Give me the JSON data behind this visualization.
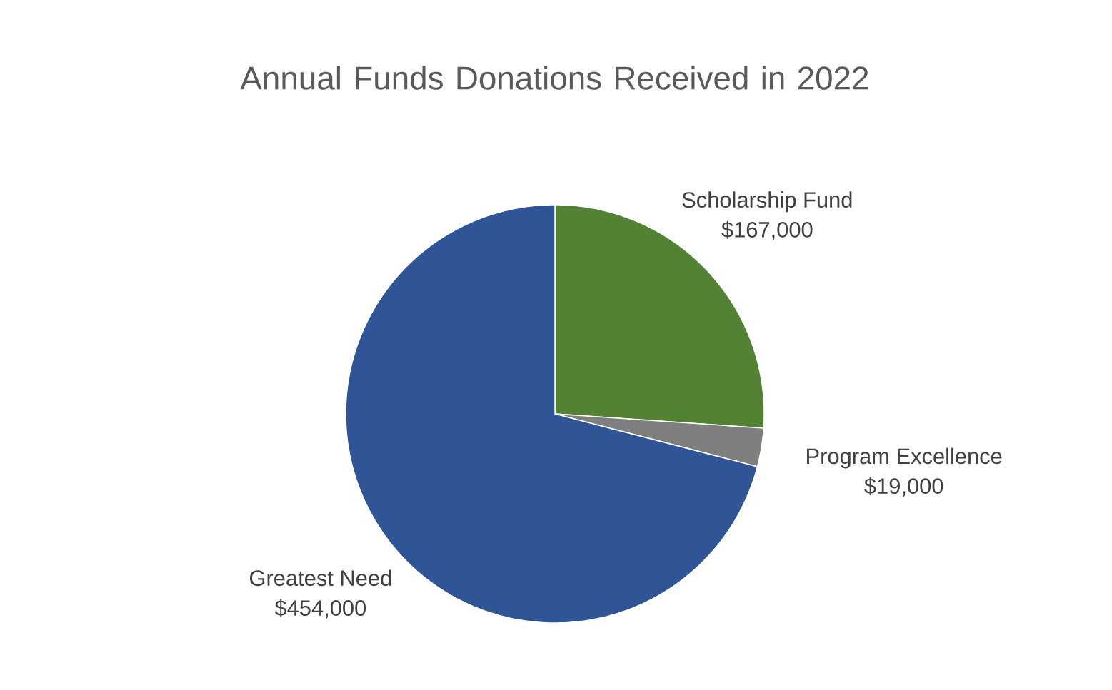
{
  "chart_data": {
    "type": "pie",
    "title": "Annual Funds Donations Received in 2022",
    "categories": [
      "Scholarship Fund",
      "Program Excellence",
      "Greatest Need"
    ],
    "values": [
      167000,
      19000,
      454000
    ],
    "value_labels": [
      "$167,000",
      "$19,000",
      "$454,000"
    ],
    "colors": [
      "#548235",
      "#7f7f7f",
      "#2f5597"
    ]
  }
}
